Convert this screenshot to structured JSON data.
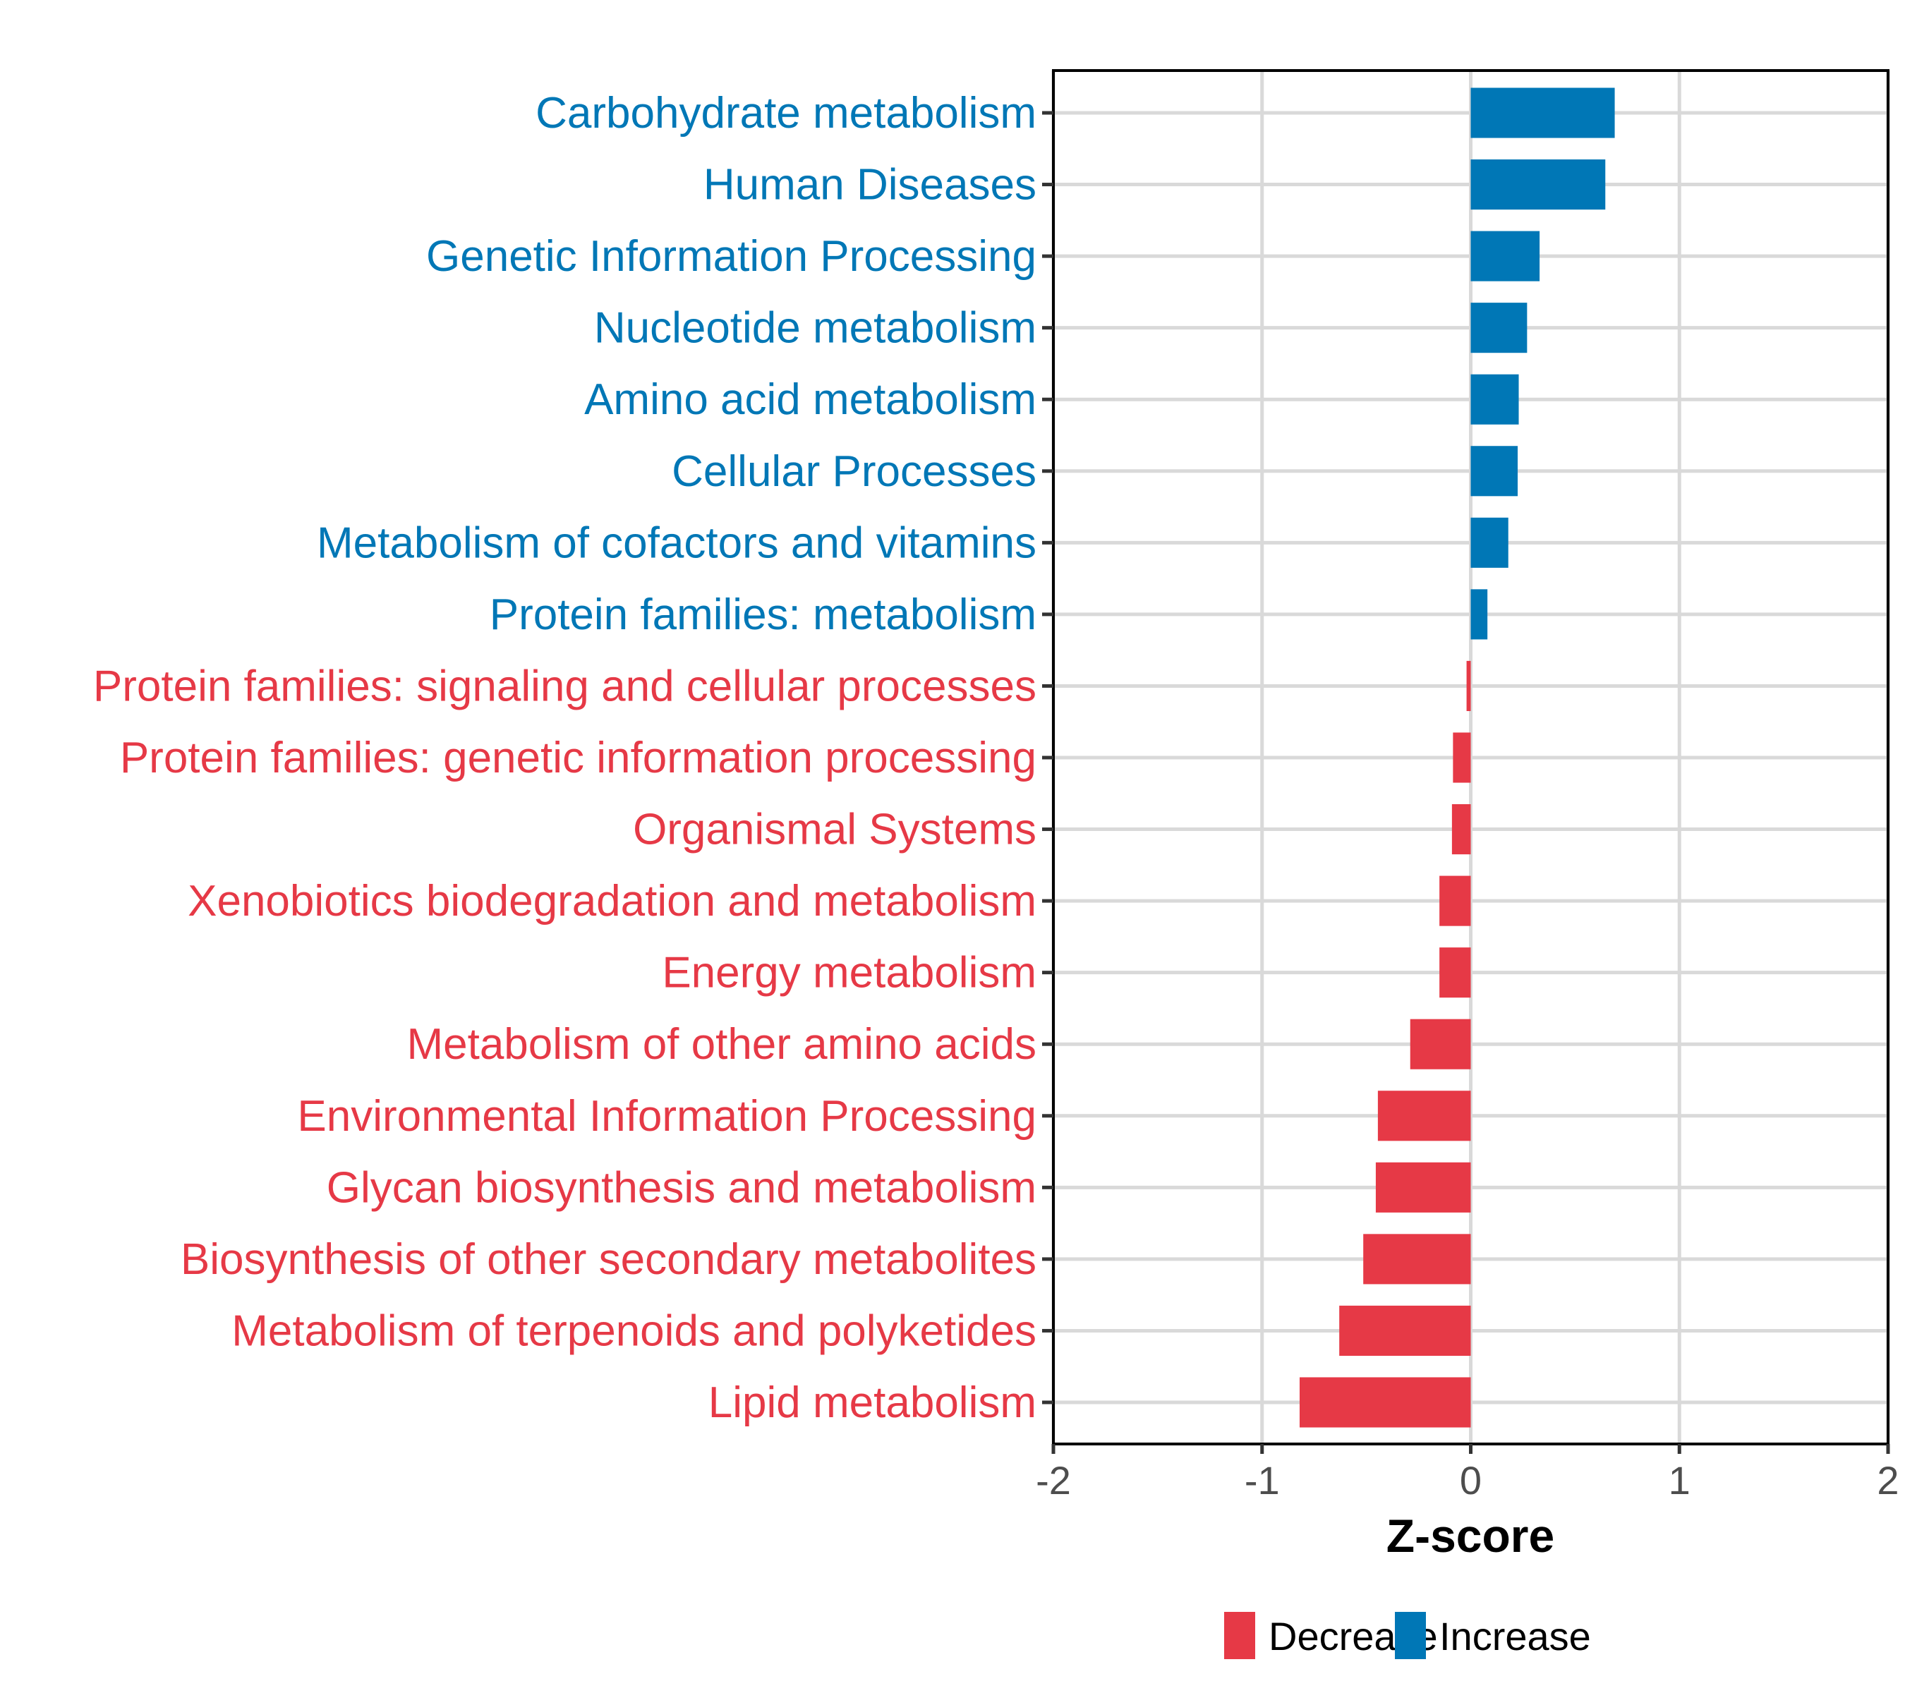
{
  "chart_data": {
    "type": "bar",
    "orientation": "horizontal",
    "title": "",
    "xlabel": "Z-score",
    "ylabel": "",
    "xlim": [
      -2,
      2
    ],
    "xticks": [
      -2,
      -1,
      0,
      1,
      2
    ],
    "xtick_labels": [
      "-2",
      "-1",
      "0",
      "1",
      "2"
    ],
    "grid": true,
    "legend_position": "bottom",
    "colors": {
      "Decrease": "#E63946",
      "Increase": "#0077B6"
    },
    "legend": [
      {
        "label": "Decrease",
        "color": "#E63946"
      },
      {
        "label": "Increase",
        "color": "#0077B6"
      }
    ],
    "categories": [
      "Carbohydrate metabolism",
      "Human Diseases",
      "Genetic Information Processing",
      "Nucleotide metabolism",
      "Amino acid metabolism",
      "Cellular Processes",
      "Metabolism of cofactors and vitamins",
      "Protein families: metabolism",
      "Protein families: signaling and cellular processes",
      "Protein families: genetic information processing",
      "Organismal Systems",
      "Xenobiotics biodegradation and metabolism",
      "Energy metabolism",
      "Metabolism of other amino acids",
      "Environmental Information Processing",
      "Glycan biosynthesis and metabolism",
      "Biosynthesis of other secondary metabolites",
      "Metabolism of terpenoids and polyketides",
      "Lipid metabolism"
    ],
    "values": [
      0.69,
      0.645,
      0.33,
      0.27,
      0.23,
      0.225,
      0.18,
      0.08,
      -0.02,
      -0.085,
      -0.09,
      -0.15,
      -0.15,
      -0.29,
      -0.445,
      -0.455,
      -0.515,
      -0.63,
      -0.82
    ],
    "groups": [
      "Increase",
      "Increase",
      "Increase",
      "Increase",
      "Increase",
      "Increase",
      "Increase",
      "Increase",
      "Decrease",
      "Decrease",
      "Decrease",
      "Decrease",
      "Decrease",
      "Decrease",
      "Decrease",
      "Decrease",
      "Decrease",
      "Decrease",
      "Decrease"
    ]
  }
}
